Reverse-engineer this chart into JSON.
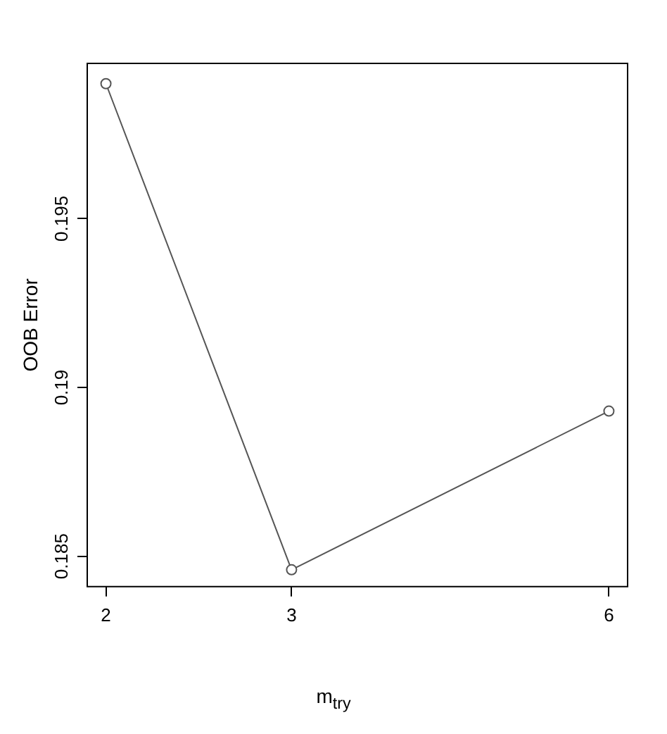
{
  "chart_data": {
    "type": "line",
    "xlabel": "m$_{try}$",
    "ylabel": "OOB Error",
    "x": [
      2,
      3,
      6
    ],
    "series": [
      {
        "color": "#555555",
        "values": [
          0.199,
          0.1846,
          0.1893
        ]
      }
    ],
    "log": "x",
    "xlim": [
      1.92,
      6.25
    ],
    "xticks": [
      2,
      3,
      6
    ],
    "ylim": [
      0.1841,
      0.1996
    ],
    "yticks": [
      0.185,
      0.19,
      0.195
    ],
    "grid": false,
    "legend": false,
    "marker": "circle",
    "line_style": "solid"
  }
}
